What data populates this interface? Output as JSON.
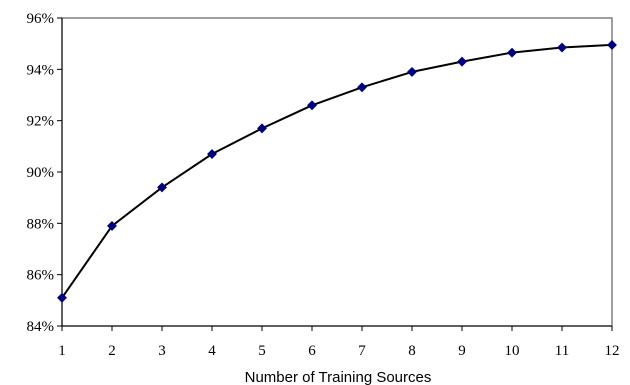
{
  "chart_data": {
    "type": "line",
    "title": "",
    "xlabel": "Number of Training Sources",
    "ylabel": "",
    "x": [
      1,
      2,
      3,
      4,
      5,
      6,
      7,
      8,
      9,
      10,
      11,
      12
    ],
    "series": [
      {
        "values": [
          85.1,
          87.9,
          89.4,
          90.7,
          91.7,
          92.6,
          93.3,
          93.9,
          94.3,
          94.65,
          94.85,
          94.95
        ]
      }
    ],
    "xlim": [
      1,
      12
    ],
    "ylim": [
      84,
      96
    ],
    "y_ticks": [
      84,
      86,
      88,
      90,
      92,
      94,
      96
    ],
    "y_tick_labels": [
      "84%",
      "86%",
      "88%",
      "90%",
      "92%",
      "94%",
      "96%"
    ],
    "x_tick_labels": [
      "1",
      "2",
      "3",
      "4",
      "5",
      "6",
      "7",
      "8",
      "9",
      "10",
      "11",
      "12"
    ],
    "grid": false,
    "legend": "none",
    "colors": {
      "line": "#000000",
      "marker": "#00007f",
      "frame": "#808080"
    }
  }
}
